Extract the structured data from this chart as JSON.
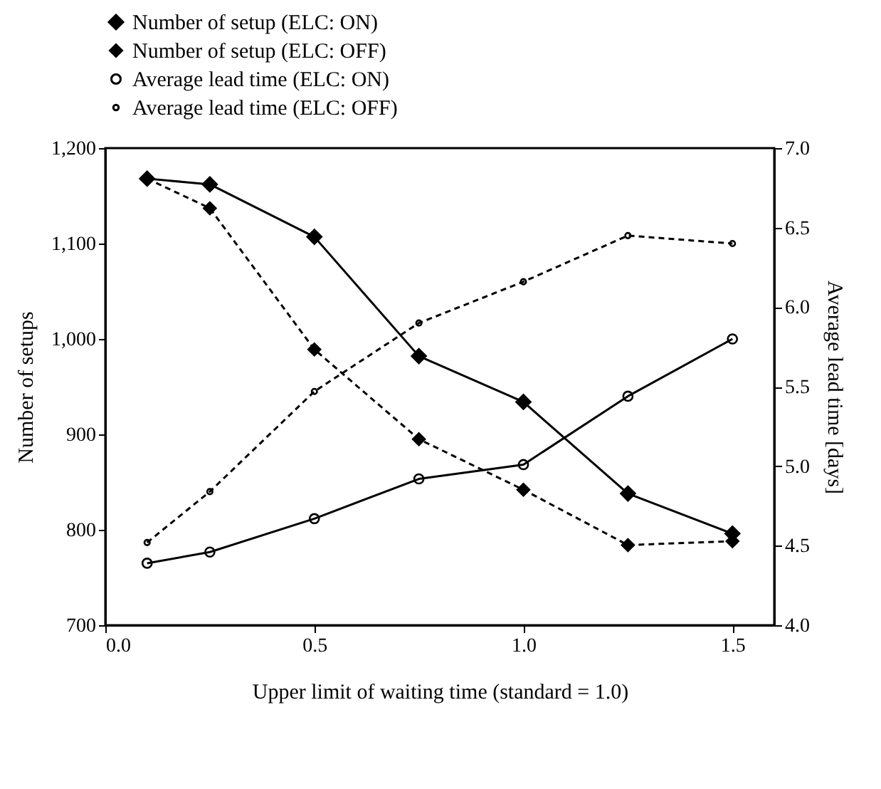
{
  "chart_data": {
    "type": "line",
    "xlabel": "Upper limit of waiting time (standard = 1.0)",
    "ylabel": "Number of setups",
    "y2label": "Average lead time [days]",
    "x": [
      0.1,
      0.25,
      0.5,
      0.75,
      1.0,
      1.25,
      1.5
    ],
    "xlim": [
      0,
      1.6
    ],
    "xticks": [
      {
        "value": 0,
        "label": "0.0"
      },
      0.5,
      {
        "value": 1,
        "label": "1.0"
      },
      1.5
    ],
    "ylim": [
      700,
      1200
    ],
    "yticks": [
      {
        "value": 700,
        "label": "700"
      },
      {
        "value": 800,
        "label": "800"
      },
      {
        "value": 900,
        "label": "900"
      },
      {
        "value": 1000,
        "label": "1,000"
      },
      {
        "value": 1100,
        "label": "1,100"
      },
      {
        "value": 1200,
        "label": "1,200"
      }
    ],
    "y2lim": [
      4,
      7
    ],
    "y2ticks": [
      {
        "value": 4,
        "label": "4.0"
      },
      4.5,
      {
        "value": 5,
        "label": "5.0"
      },
      5.5,
      {
        "value": 6,
        "label": "6.0"
      },
      6.5,
      {
        "value": 7,
        "label": "7.0"
      }
    ],
    "grid": false,
    "legend": "top",
    "series": [
      {
        "name": "Number of setup (ELC: ON)",
        "color": "#000000",
        "marker": "diamond",
        "line_style": "solid",
        "values": [
          1168,
          1162,
          1107,
          982,
          934,
          838,
          796
        ]
      },
      {
        "name": "Number of setup (ELC: OFF)",
        "color": "#000000",
        "marker": "diamond",
        "line_style": "dashed",
        "values": [
          1168,
          1137,
          989,
          895,
          842,
          784,
          788
        ]
      },
      {
        "name": "Average lead time (ELC: ON)",
        "color": "#000000",
        "marker": "circle",
        "line_style": "solid",
        "axis": "y2",
        "values": [
          4.39,
          4.46,
          4.67,
          4.92,
          5.01,
          5.44,
          5.8
        ]
      },
      {
        "name": "Average lead time (ELC: OFF)",
        "color": "#000000",
        "marker": "circle",
        "line_style": "dashed",
        "axis": "y2",
        "values": [
          4.52,
          4.84,
          5.47,
          5.9,
          6.16,
          6.45,
          6.4
        ]
      }
    ]
  }
}
